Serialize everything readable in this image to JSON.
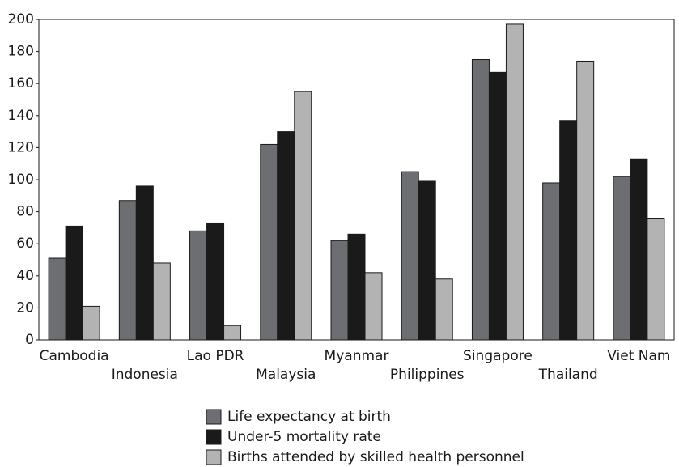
{
  "chart_data": {
    "type": "bar",
    "categories": [
      "Cambodia",
      "Indonesia",
      "Lao PDR",
      "Malaysia",
      "Myanmar",
      "Philippines",
      "Singapore",
      "Thailand",
      "Viet Nam"
    ],
    "series": [
      {
        "name": "Life expectancy at birth",
        "color": "#6d6e71",
        "values": [
          51,
          87,
          68,
          122,
          62,
          105,
          175,
          98,
          102
        ]
      },
      {
        "name": "Under-5 mortality rate",
        "color": "#1a1a1a",
        "values": [
          71,
          96,
          73,
          130,
          66,
          99,
          167,
          137,
          113
        ]
      },
      {
        "name": "Births attended by skilled health personnel",
        "color": "#b3b3b3",
        "values": [
          21,
          48,
          9,
          155,
          42,
          38,
          197,
          174,
          76
        ]
      }
    ],
    "ylim": [
      0,
      200
    ],
    "yticks": [
      0,
      20,
      40,
      60,
      80,
      100,
      120,
      140,
      160,
      180,
      200
    ],
    "grid": false
  }
}
